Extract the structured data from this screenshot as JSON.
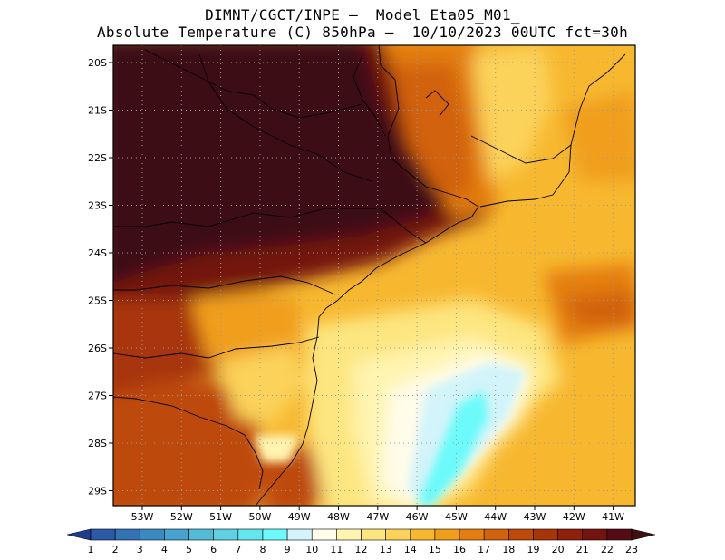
{
  "title_line1": "DIMNT/CGCT/INPE —  Model Eta05_M01_",
  "title_line2": "Absolute Temperature (C) 850hPa —  10/10/2023 00UTC fct=30h",
  "lat_labels": [
    "20S",
    "21S",
    "22S",
    "23S",
    "24S",
    "25S",
    "26S",
    "27S",
    "28S",
    "29S"
  ],
  "lon_labels": [
    "53W",
    "52W",
    "51W",
    "50W",
    "49W",
    "48W",
    "47W",
    "46W",
    "45W",
    "44W",
    "43W",
    "42W",
    "41W"
  ],
  "legend": {
    "labels": [
      "1",
      "2",
      "3",
      "4",
      "5",
      "6",
      "7",
      "8",
      "9",
      "10",
      "11",
      "12",
      "13",
      "14",
      "15",
      "16",
      "17",
      "18",
      "19",
      "20",
      "21",
      "22",
      "23"
    ],
    "colors": [
      "#1e3c8c",
      "#2a5aa8",
      "#3272b6",
      "#3a8ac2",
      "#46a2ce",
      "#52bcd8",
      "#5ed2e2",
      "#64e6ee",
      "#6cfafa",
      "#d2f4fa",
      "#fffcea",
      "#fff4b0",
      "#fde680",
      "#fbd25a",
      "#f7b830",
      "#f09e1a",
      "#e47e10",
      "#d2620c",
      "#be4a0a",
      "#a8340a",
      "#8e200c",
      "#741410",
      "#560c14",
      "#3e1012"
    ]
  },
  "field": {
    "units": "C",
    "level": "850hPa"
  }
}
